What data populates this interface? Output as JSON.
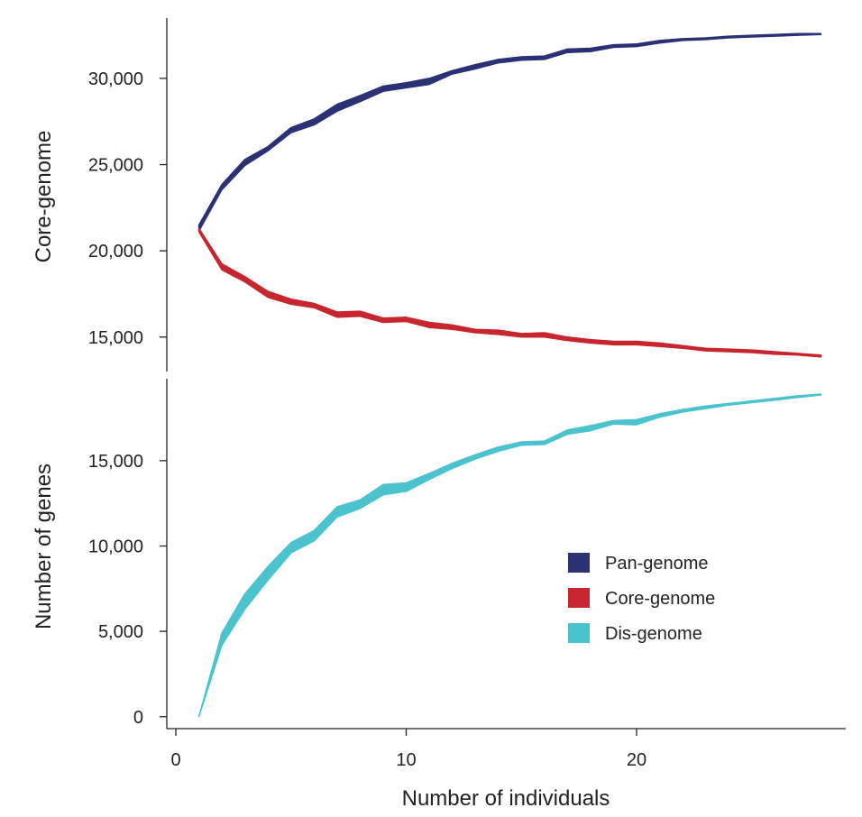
{
  "chart_data": {
    "type": "area",
    "xlabel": "Number of individuals",
    "ylabel_upper": "Core-genome",
    "ylabel_lower": "Number of genes",
    "xlim": [
      0,
      29
    ],
    "x_ticks": [
      0,
      10,
      20
    ],
    "x_tick_labels": [
      "0",
      "10",
      "20"
    ],
    "upper_panel": {
      "ylim": [
        13000,
        33500
      ],
      "y_ticks": [
        15000,
        20000,
        25000,
        30000
      ],
      "y_tick_labels": [
        "15,000",
        "20,000",
        "25,000",
        "30,000"
      ]
    },
    "lower_panel": {
      "ylim": [
        -700,
        19800
      ],
      "y_ticks": [
        0,
        5000,
        10000,
        15000
      ],
      "y_tick_labels": [
        "0",
        "5,000",
        "10,000",
        "15,000"
      ]
    },
    "x": [
      1,
      2,
      3,
      4,
      5,
      6,
      7,
      8,
      9,
      10,
      11,
      12,
      13,
      14,
      15,
      16,
      17,
      18,
      19,
      20,
      21,
      22,
      23,
      24,
      25,
      26,
      27,
      28
    ],
    "legend": {
      "position": "lower-right"
    },
    "series": [
      {
        "name": "Pan-genome",
        "panel": "upper",
        "color": "#2b3175",
        "lower": [
          21150,
          23550,
          24950,
          25800,
          26850,
          27300,
          28100,
          28650,
          29250,
          29450,
          29650,
          30250,
          30550,
          30900,
          31050,
          31100,
          31500,
          31550,
          31800,
          31850,
          32050,
          32200,
          32250,
          32350,
          32400,
          32450,
          32500,
          32550
        ],
        "upper": [
          21500,
          23850,
          25300,
          26050,
          27150,
          27650,
          28500,
          29000,
          29550,
          29750,
          30000,
          30450,
          30800,
          31100,
          31250,
          31300,
          31700,
          31750,
          31950,
          32000,
          32200,
          32300,
          32350,
          32450,
          32500,
          32550,
          32600,
          32600
        ]
      },
      {
        "name": "Core-genome",
        "panel": "upper",
        "color": "#c8262e",
        "lower": [
          21100,
          18900,
          18200,
          17300,
          16900,
          16700,
          16150,
          16200,
          15850,
          15900,
          15550,
          15450,
          15250,
          15150,
          15000,
          15000,
          14800,
          14650,
          14550,
          14550,
          14450,
          14350,
          14200,
          14150,
          14100,
          14000,
          13950,
          13850
        ],
        "upper": [
          21300,
          19250,
          18500,
          17650,
          17200,
          16950,
          16450,
          16500,
          16100,
          16150,
          15850,
          15700,
          15450,
          15400,
          15200,
          15250,
          15000,
          14850,
          14750,
          14750,
          14650,
          14500,
          14350,
          14300,
          14250,
          14150,
          14050,
          13950
        ]
      },
      {
        "name": "Dis-genome",
        "panel": "lower",
        "color": "#4ac3cf",
        "lower": [
          0,
          4200,
          6300,
          8000,
          9600,
          10300,
          11700,
          12200,
          13000,
          13200,
          13900,
          14550,
          15100,
          15550,
          15900,
          15950,
          16550,
          16750,
          17150,
          17100,
          17550,
          17850,
          18050,
          18250,
          18400,
          18550,
          18700,
          18850
        ],
        "upper": [
          0,
          4900,
          7200,
          8800,
          10200,
          10900,
          12300,
          12700,
          13600,
          13700,
          14250,
          14850,
          15350,
          15800,
          16100,
          16150,
          16800,
          17050,
          17350,
          17400,
          17750,
          18000,
          18200,
          18350,
          18500,
          18650,
          18800,
          18900
        ]
      }
    ]
  }
}
